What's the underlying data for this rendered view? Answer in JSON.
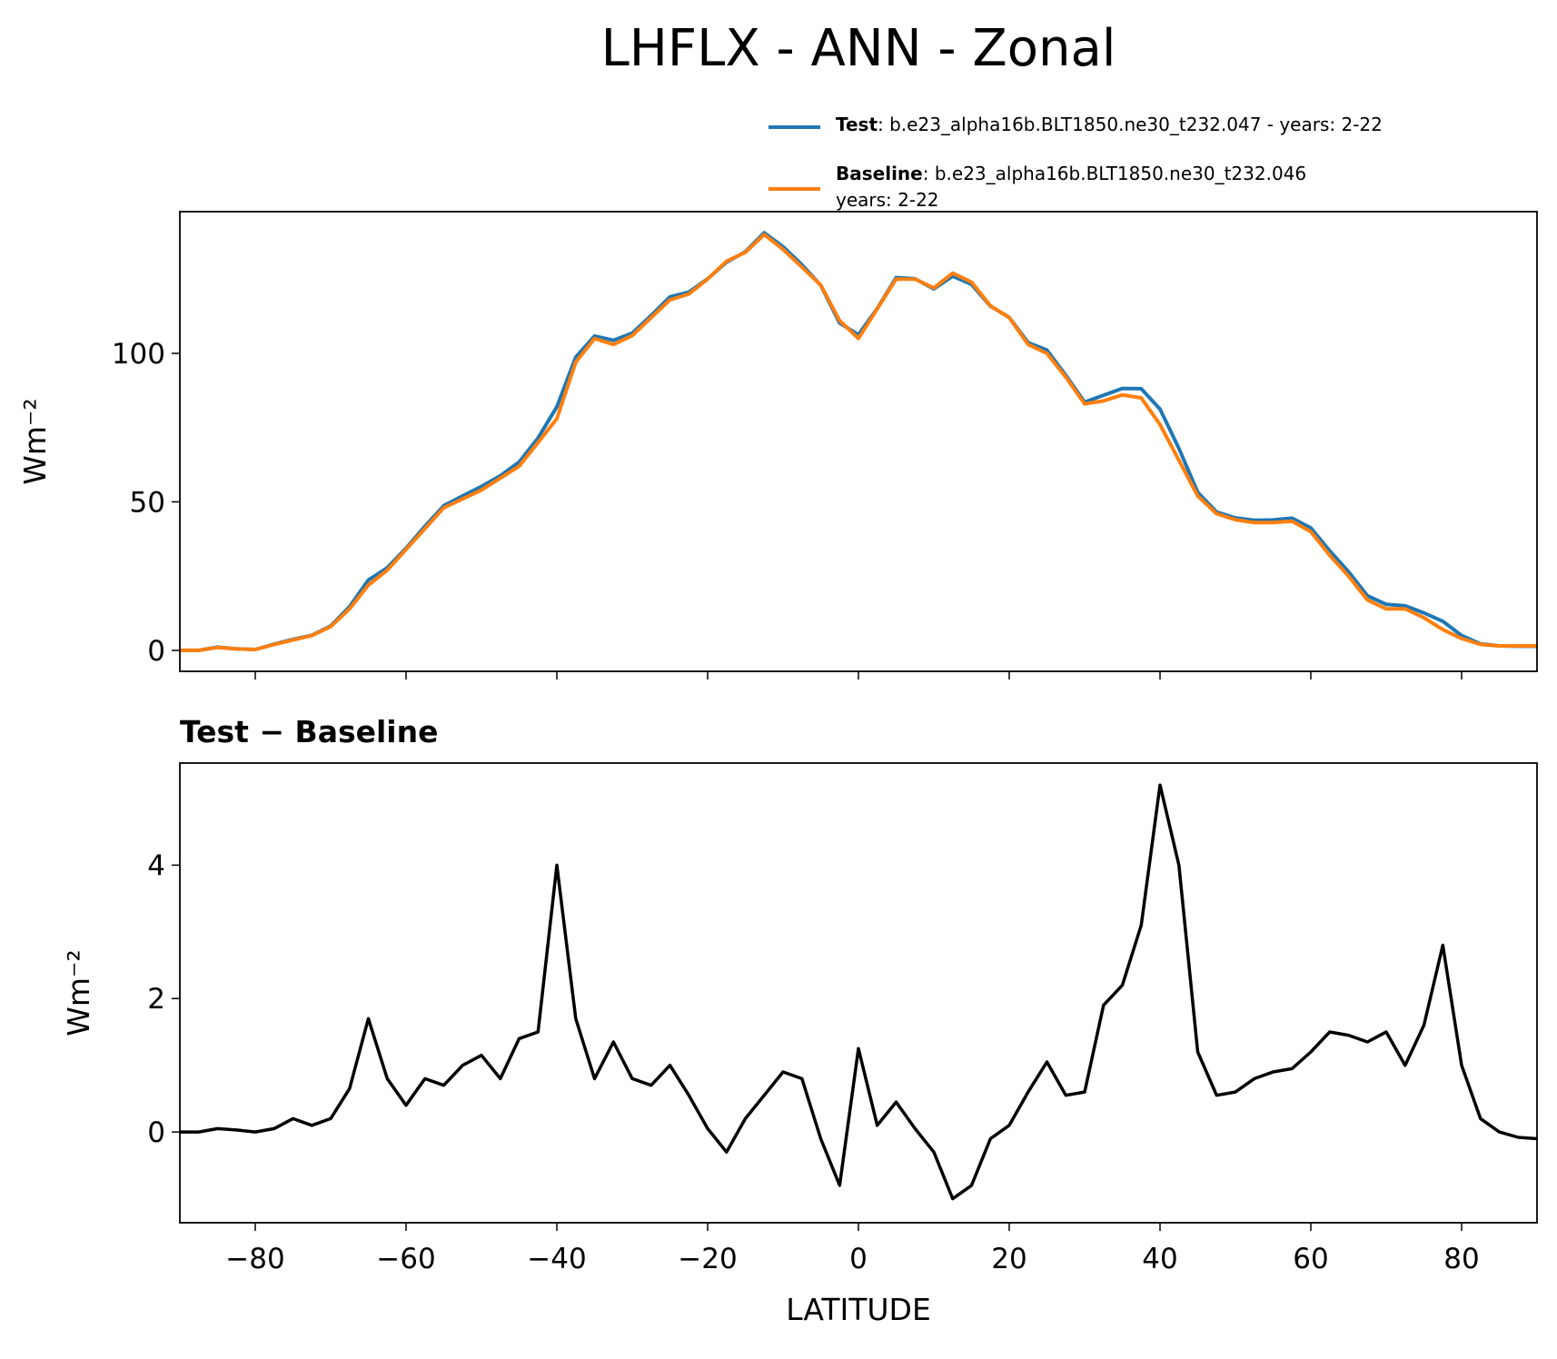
{
  "title": "LHFLX - ANN - Zonal",
  "chart_data": [
    {
      "type": "line",
      "legend": "upper right",
      "xlim": [
        -90,
        90
      ],
      "ylim": [
        -7.05,
        147.7
      ],
      "xticks": [
        -80,
        -60,
        -40,
        -20,
        0,
        20,
        40,
        60,
        80
      ],
      "xticklabels": false,
      "yticks": [
        0,
        50,
        100
      ],
      "ylabel": "Wm⁻²",
      "x": [
        -90,
        -87.5,
        -85,
        -82.5,
        -80,
        -77.5,
        -75,
        -72.5,
        -70,
        -67.5,
        -65,
        -62.5,
        -60,
        -57.5,
        -55,
        -52.5,
        -50,
        -47.5,
        -45,
        -42.5,
        -40,
        -37.5,
        -35,
        -32.5,
        -30,
        -27.5,
        -25,
        -22.5,
        -20,
        -17.5,
        -15,
        -12.5,
        -10,
        -7.5,
        -5,
        -2.5,
        0,
        2.5,
        5,
        7.5,
        10,
        12.5,
        15,
        17.5,
        20,
        22.5,
        25,
        27.5,
        30,
        32.5,
        35,
        37.5,
        40,
        42.5,
        45,
        47.5,
        50,
        52.5,
        55,
        57.5,
        60,
        62.5,
        65,
        67.5,
        70,
        72.5,
        75,
        77.5,
        80,
        82.5,
        85,
        87.5,
        90
      ],
      "series": [
        {
          "name": "Test",
          "label_lines": [
            ": b.e23_alpha16b.BLT1850.ne30_t232.047 - years: 2-22"
          ],
          "color": "#1f77b4",
          "values": [
            0,
            0,
            1.1,
            0.5,
            0.3,
            2.1,
            3.7,
            5.1,
            8.2,
            14.7,
            23.7,
            27.8,
            34.4,
            41.8,
            48.7,
            52,
            55.2,
            58.8,
            63.4,
            71.5,
            82,
            98.7,
            105.8,
            104.4,
            106.8,
            112.7,
            119,
            120.6,
            125.1,
            130.7,
            134.2,
            140.6,
            135.9,
            129.8,
            122.9,
            110.2,
            106.3,
            115.1,
            125.5,
            125.1,
            121.7,
            126,
            123.2,
            115.9,
            112.1,
            103.6,
            101.1,
            92.6,
            83.6,
            85.9,
            88.2,
            88.1,
            81.2,
            68,
            53.2,
            46.6,
            44.6,
            43.8,
            43.9,
            44.5,
            41.2,
            33.5,
            26.5,
            18.4,
            15.5,
            15,
            12.6,
            9.8,
            5,
            2.2,
            1.5,
            1.4,
            1.4
          ]
        },
        {
          "name": "Baseline",
          "label_lines": [
            ": b.e23_alpha16b.BLT1850.ne30_t232.046",
            "years: 2-22"
          ],
          "color": "#ff7f0e",
          "values": [
            0,
            0,
            1,
            0.5,
            0.3,
            2,
            3.5,
            5,
            8,
            14,
            22,
            27,
            34,
            41,
            48,
            51,
            54,
            58,
            62,
            70,
            78,
            97,
            105,
            103,
            106,
            112,
            118,
            120,
            125,
            131,
            134,
            140,
            135,
            129,
            123,
            111,
            105,
            115,
            125,
            125,
            122,
            127,
            124,
            116,
            112,
            103,
            100,
            92,
            83,
            84,
            86,
            85,
            76,
            64,
            52,
            46,
            44,
            43,
            43,
            43.5,
            40,
            32,
            25,
            17,
            14,
            14,
            11,
            7,
            4,
            2,
            1.5,
            1.5,
            1.5
          ]
        }
      ]
    },
    {
      "type": "line",
      "title": "Test − Baseline",
      "xlim": [
        -90,
        90
      ],
      "ylim": [
        -1.36,
        5.53
      ],
      "xticks": [
        {
          "value": -80,
          "label": "−80"
        },
        {
          "value": -60,
          "label": "−60"
        },
        {
          "value": -40,
          "label": "−40"
        },
        {
          "value": -20,
          "label": "−20"
        },
        0,
        20,
        40,
        60,
        80
      ],
      "xticklabels": true,
      "yticks": [
        0,
        2,
        4
      ],
      "xlabel": "LATITUDE",
      "ylabel": "Wm⁻²",
      "color": "#000000",
      "x": [
        -90,
        -87.5,
        -85,
        -82.5,
        -80,
        -77.5,
        -75,
        -72.5,
        -70,
        -67.5,
        -65,
        -62.5,
        -60,
        -57.5,
        -55,
        -52.5,
        -50,
        -47.5,
        -45,
        -42.5,
        -40,
        -37.5,
        -35,
        -32.5,
        -30,
        -27.5,
        -25,
        -22.5,
        -20,
        -17.5,
        -15,
        -12.5,
        -10,
        -7.5,
        -5,
        -2.5,
        0,
        2.5,
        5,
        7.5,
        10,
        12.5,
        15,
        17.5,
        20,
        22.5,
        25,
        27.5,
        30,
        32.5,
        35,
        37.5,
        40,
        42.5,
        45,
        47.5,
        50,
        52.5,
        55,
        57.5,
        60,
        62.5,
        65,
        67.5,
        70,
        72.5,
        75,
        77.5,
        80,
        82.5,
        85,
        87.5,
        90
      ],
      "values": [
        0,
        0,
        0.05,
        0.03,
        0,
        0.05,
        0.2,
        0.1,
        0.2,
        0.65,
        1.7,
        0.8,
        0.4,
        0.8,
        0.7,
        1.0,
        1.15,
        0.8,
        1.4,
        1.5,
        4.0,
        1.7,
        0.8,
        1.35,
        0.8,
        0.7,
        1.0,
        0.55,
        0.05,
        -0.3,
        0.2,
        0.55,
        0.9,
        0.8,
        -0.1,
        -0.8,
        1.25,
        0.1,
        0.45,
        0.05,
        -0.3,
        -1.0,
        -0.8,
        -0.1,
        0.1,
        0.6,
        1.05,
        0.55,
        0.6,
        1.9,
        2.2,
        3.1,
        5.2,
        4.0,
        1.2,
        0.55,
        0.6,
        0.8,
        0.9,
        0.95,
        1.2,
        1.5,
        1.45,
        1.35,
        1.5,
        1.0,
        1.6,
        2.8,
        1.0,
        0.2,
        0,
        -0.08,
        -0.1
      ]
    }
  ]
}
